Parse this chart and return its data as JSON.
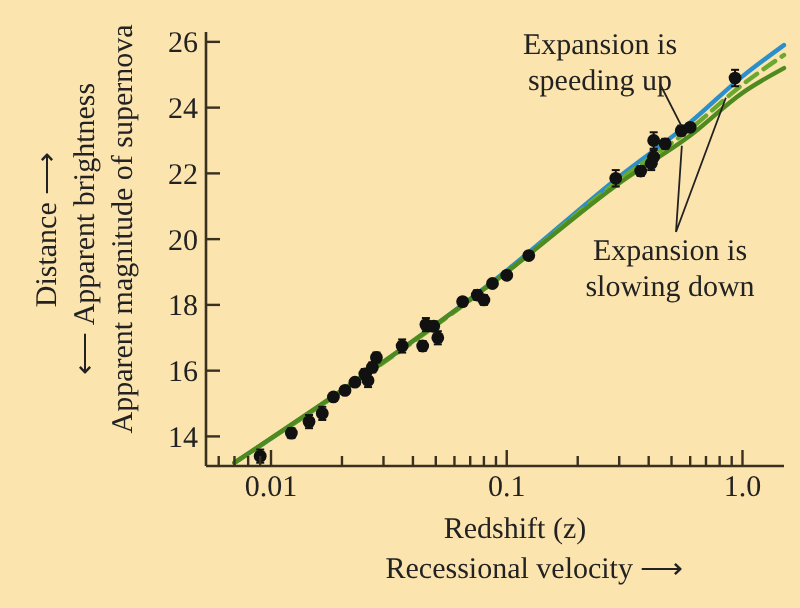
{
  "chart_data": {
    "type": "scatter",
    "xlabel": "Redshift (z)\nRecessional velocity ⟶",
    "ylabel": "Distance ⟶\n⟵ Apparent brightness\nApparent magnitude of supernova",
    "log": "x",
    "marker": "circle",
    "xlim": [
      0.0053,
      1.5
    ],
    "ylim": [
      13.1,
      26.3
    ],
    "xticks": [
      {
        "value": 0.006,
        "label": null
      },
      {
        "value": 0.007,
        "label": null
      },
      {
        "value": 0.008,
        "label": null
      },
      {
        "value": 0.009,
        "label": null
      },
      {
        "value": 0.01,
        "label": "0.01"
      },
      {
        "value": 0.02,
        "label": null
      },
      {
        "value": 0.03,
        "label": null
      },
      {
        "value": 0.04,
        "label": null
      },
      {
        "value": 0.05,
        "label": null
      },
      {
        "value": 0.06,
        "label": null
      },
      {
        "value": 0.07,
        "label": null
      },
      {
        "value": 0.08,
        "label": null
      },
      {
        "value": 0.09,
        "label": null
      },
      {
        "value": 0.1,
        "label": "0.1"
      },
      {
        "value": 0.2,
        "label": null
      },
      {
        "value": 0.3,
        "label": null
      },
      {
        "value": 0.4,
        "label": null
      },
      {
        "value": 0.5,
        "label": null
      },
      {
        "value": 0.6,
        "label": null
      },
      {
        "value": 0.7,
        "label": null
      },
      {
        "value": 0.8,
        "label": null
      },
      {
        "value": 0.9,
        "label": null
      },
      {
        "value": 1.0,
        "label": "1.0"
      }
    ],
    "yticks": [
      14,
      16,
      18,
      20,
      22,
      24,
      26
    ],
    "annotations": [
      {
        "text": "Expansion is\nspeeding up",
        "x": 0.55,
        "y": 23.45
      },
      {
        "text": "Expansion is\nslowing down",
        "x": 0.85,
        "y": 24.3
      }
    ],
    "series": [
      {
        "type": "line",
        "color": "#2b8fc9",
        "line_style": "solid",
        "marker": "none",
        "x": [
          0.007,
          0.1,
          0.3,
          0.6,
          1.0,
          1.5
        ],
        "values": [
          13.2,
          19.05,
          21.9,
          23.55,
          24.95,
          25.9
        ]
      },
      {
        "type": "line",
        "color": "#6aa82e",
        "line_style": "dashed",
        "marker": "none",
        "x": [
          0.007,
          0.1,
          0.3,
          0.6,
          1.0,
          1.5
        ],
        "values": [
          13.2,
          19.0,
          21.8,
          23.35,
          24.7,
          25.6
        ]
      },
      {
        "type": "line",
        "color": "#4f8a1f",
        "line_style": "solid",
        "marker": "none",
        "x": [
          0.007,
          0.1,
          0.3,
          0.6,
          1.0,
          1.5
        ],
        "values": [
          13.2,
          19.0,
          21.7,
          23.15,
          24.45,
          25.2
        ]
      },
      {
        "color": "#111111",
        "x": [
          0.009,
          0.0122,
          0.0145,
          0.0165,
          0.0184,
          0.0206,
          0.0227,
          0.025,
          0.0258,
          0.0269,
          0.028,
          0.036,
          0.044,
          0.0454,
          0.049,
          0.051,
          0.065,
          0.075,
          0.08,
          0.087,
          0.1,
          0.124,
          0.29,
          0.37,
          0.41,
          0.42,
          0.42,
          0.47,
          0.55,
          0.6,
          0.93
        ],
        "values": [
          13.4,
          14.1,
          14.45,
          14.7,
          15.2,
          15.4,
          15.65,
          15.9,
          15.7,
          16.1,
          16.4,
          16.75,
          16.75,
          17.4,
          17.35,
          17.0,
          18.1,
          18.3,
          18.15,
          18.65,
          18.9,
          19.5,
          21.85,
          22.07,
          22.3,
          22.5,
          23.0,
          22.9,
          23.3,
          23.4,
          24.9
        ],
        "errors": [
          0.2,
          0.15,
          0.2,
          0.2,
          0.1,
          0.1,
          0.1,
          0.15,
          0.2,
          0.15,
          0.15,
          0.2,
          0.15,
          0.2,
          0.15,
          0.2,
          0.1,
          0.15,
          0.15,
          0.1,
          0.1,
          0.1,
          0.25,
          0.15,
          0.2,
          0.2,
          0.25,
          0.15,
          0.15,
          0.1,
          0.25
        ]
      }
    ]
  }
}
